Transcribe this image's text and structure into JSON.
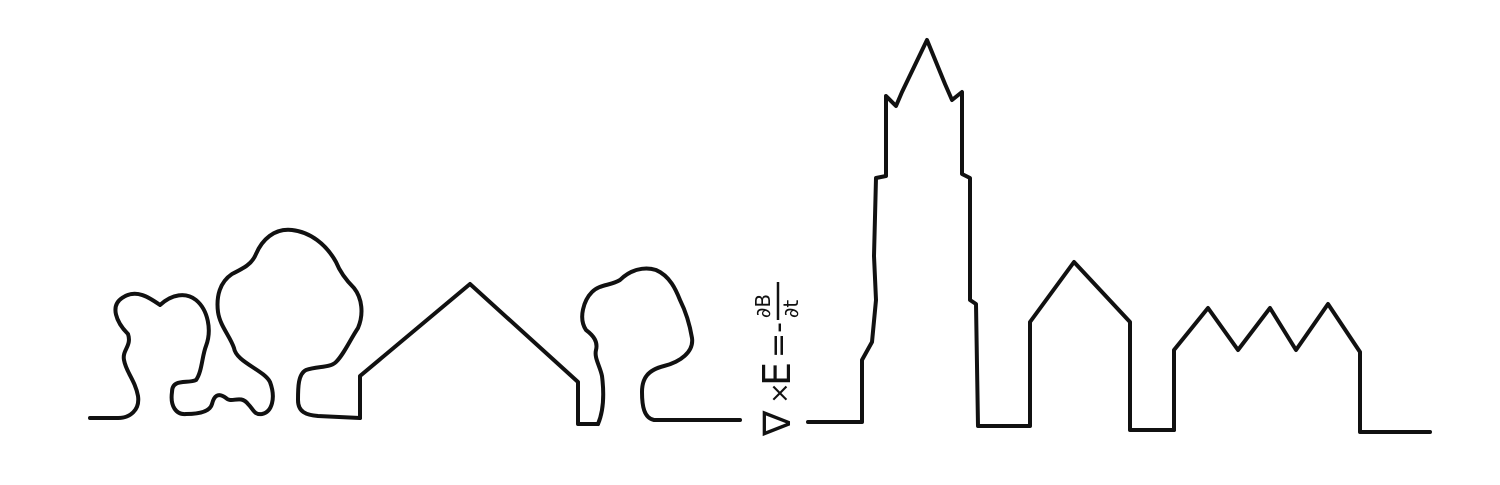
{
  "colors": {
    "background": "#ffffff",
    "ink": "#111111"
  },
  "formula": {
    "nabla": "∇",
    "cross": "×",
    "field_e": "E",
    "equals_minus": "=-",
    "numerator": "∂B",
    "denominator": "∂t"
  }
}
